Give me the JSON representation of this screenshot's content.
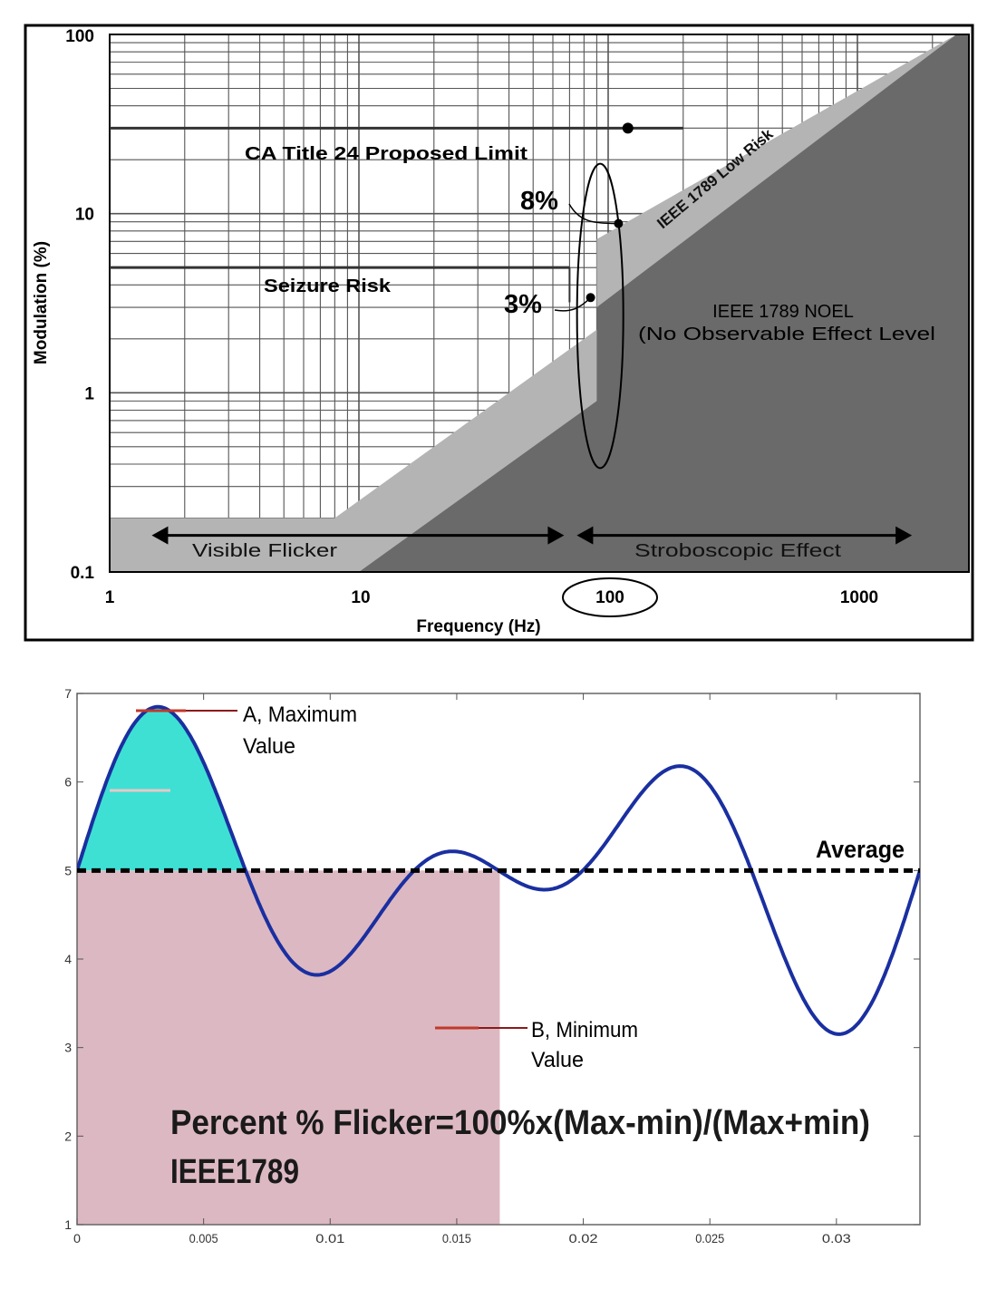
{
  "chart_data": [
    {
      "type": "area",
      "xscale": "log",
      "yscale": "log",
      "xlabel": "Frequency (Hz)",
      "ylabel": "Modulation (%)",
      "xlim": [
        1,
        2500
      ],
      "ylim": [
        0.1,
        100
      ],
      "x_ticks": [
        1,
        10,
        100,
        1000
      ],
      "y_ticks": [
        0.1,
        1,
        10,
        100
      ],
      "x_tick_labels": [
        "1",
        "10",
        "100",
        "1000"
      ],
      "y_tick_labels": [
        "0.1",
        "1",
        "10",
        "100"
      ],
      "grid": true,
      "regions": [
        {
          "name": "IEEE 1789 Low Risk",
          "color": "#b4b4b4",
          "boundary": [
            [
              1,
              0.2
            ],
            [
              8,
              0.2
            ],
            [
              90,
              2.25
            ],
            [
              90,
              7.2
            ],
            [
              2500,
              100
            ]
          ]
        },
        {
          "name": "IEEE 1789 NOEL",
          "color": "#6a6a6a",
          "boundary": [
            [
              10,
              0.1
            ],
            [
              90,
              0.9
            ],
            [
              90,
              3.0
            ],
            [
              2500,
              100
            ]
          ]
        }
      ],
      "lines": [
        {
          "label": "CA Title 24 Proposed Limit",
          "x": [
            1,
            200
          ],
          "y": [
            30,
            30
          ]
        },
        {
          "label": "Seizure Risk",
          "x": [
            1,
            70
          ],
          "y": [
            5,
            5
          ]
        }
      ],
      "points": [
        {
          "x": 120,
          "y": 30
        },
        {
          "label": "8%",
          "x": 110,
          "y": 8.8
        },
        {
          "label": "3%",
          "x": 85,
          "y": 3.4
        }
      ],
      "ranges": [
        {
          "label": "Visible Flicker",
          "x": [
            1.5,
            70
          ],
          "y": 0.16
        },
        {
          "label": "Stroboscopic Effect",
          "x": [
            70,
            1600
          ],
          "y": 0.16
        }
      ],
      "region_labels": {
        "low_risk": "IEEE 1789 Low Risk",
        "noel_1": "IEEE 1789 NOEL",
        "noel_2": "(No Observable Effect Level"
      },
      "highlight_ellipse": {
        "x": [
          75,
          115
        ],
        "y": [
          0.38,
          19
        ]
      },
      "highlight_tick": 100
    },
    {
      "type": "line",
      "xlim": [
        0,
        0.0333
      ],
      "ylim": [
        1,
        7
      ],
      "x_ticks": [
        0,
        0.005,
        0.01,
        0.015,
        0.02,
        0.025,
        0.03
      ],
      "y_ticks": [
        1,
        2,
        3,
        4,
        5,
        6,
        7
      ],
      "x_tick_labels": [
        "0",
        "0.005",
        "0.01",
        "0.015",
        "0.02",
        "0.025",
        "0.03"
      ],
      "y_tick_labels": [
        "1",
        "2",
        "3",
        "4",
        "5",
        "6",
        "7"
      ],
      "waveform": {
        "period": 0.0333,
        "mean": 5,
        "amplitude_1": 0.97,
        "amplitude_2": 0.97
      },
      "average": {
        "label": "Average",
        "y": 5
      },
      "max_point": {
        "label_1": "A, Maximum",
        "label_2": "Value",
        "x": 0.0025,
        "y": 6.8
      },
      "min_point": {
        "label_1": "B, Minimum",
        "label_2": "Value",
        "x": 0.0142,
        "y": 3.25
      },
      "shaded_region_x": [
        0,
        0.0167
      ],
      "formula": "Percent % Flicker=100%x(Max-min)/(Max+min)",
      "standard": "IEEE1789"
    }
  ],
  "colors": {
    "light_region": "#b4b4b4",
    "dark_region": "#6a6a6a",
    "wave": "#1a2fa0",
    "peak_fill": "#3ee0d4",
    "pink_fill": "#dcb8c2",
    "marker_red": "#c0392b"
  }
}
